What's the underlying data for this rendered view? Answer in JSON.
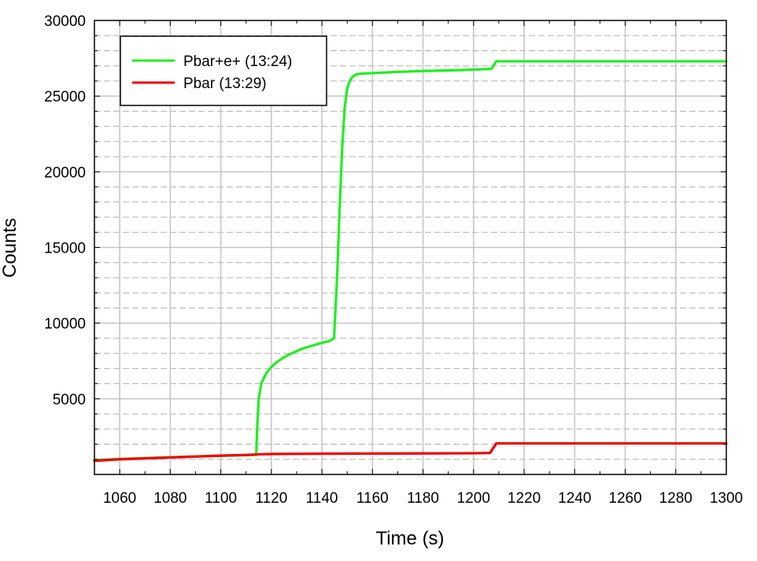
{
  "chart_data": {
    "type": "line",
    "title": "",
    "xlabel": "Time (s)",
    "ylabel": "Counts",
    "xlim": [
      1050,
      1300
    ],
    "ylim": [
      0,
      30000
    ],
    "grid": true,
    "legend_position": "top-left",
    "x_ticks": [
      1060,
      1080,
      1100,
      1120,
      1140,
      1160,
      1180,
      1200,
      1220,
      1240,
      1260,
      1280,
      1300
    ],
    "y_ticks": [
      5000,
      10000,
      15000,
      20000,
      25000,
      30000
    ],
    "series": [
      {
        "name": "Pbar+e+ (13:24)",
        "color": "#22ee22",
        "x": [
          1050,
          1060,
          1070,
          1080,
          1090,
          1100,
          1110,
          1114,
          1114.5,
          1115,
          1116,
          1118,
          1120,
          1122,
          1125,
          1128,
          1130,
          1133,
          1136,
          1140,
          1143,
          1144.8,
          1146,
          1147,
          1148,
          1149,
          1150,
          1151,
          1152,
          1153,
          1154,
          1155,
          1157,
          1160,
          1170,
          1180,
          1190,
          1200,
          1207,
          1209,
          1220,
          1240,
          1260,
          1280,
          1300
        ],
        "y": [
          950,
          1020,
          1080,
          1140,
          1190,
          1240,
          1270,
          1290,
          3500,
          5000,
          6000,
          6700,
          7100,
          7400,
          7750,
          8000,
          8150,
          8350,
          8500,
          8700,
          8820,
          9000,
          13000,
          17500,
          21500,
          24200,
          25500,
          26000,
          26250,
          26380,
          26450,
          26480,
          26500,
          26520,
          26600,
          26660,
          26700,
          26750,
          26800,
          27300,
          27300,
          27300,
          27300,
          27300,
          27300
        ]
      },
      {
        "name": "Pbar (13:29)",
        "color": "#ee0000",
        "x": [
          1050,
          1060,
          1070,
          1080,
          1090,
          1100,
          1110,
          1115,
          1120,
          1140,
          1160,
          1180,
          1200,
          1206.5,
          1209,
          1220,
          1240,
          1260,
          1280,
          1300
        ],
        "y": [
          900,
          1000,
          1060,
          1120,
          1180,
          1240,
          1290,
          1330,
          1350,
          1370,
          1380,
          1390,
          1400,
          1420,
          2050,
          2050,
          2050,
          2050,
          2050,
          2050
        ]
      }
    ]
  }
}
